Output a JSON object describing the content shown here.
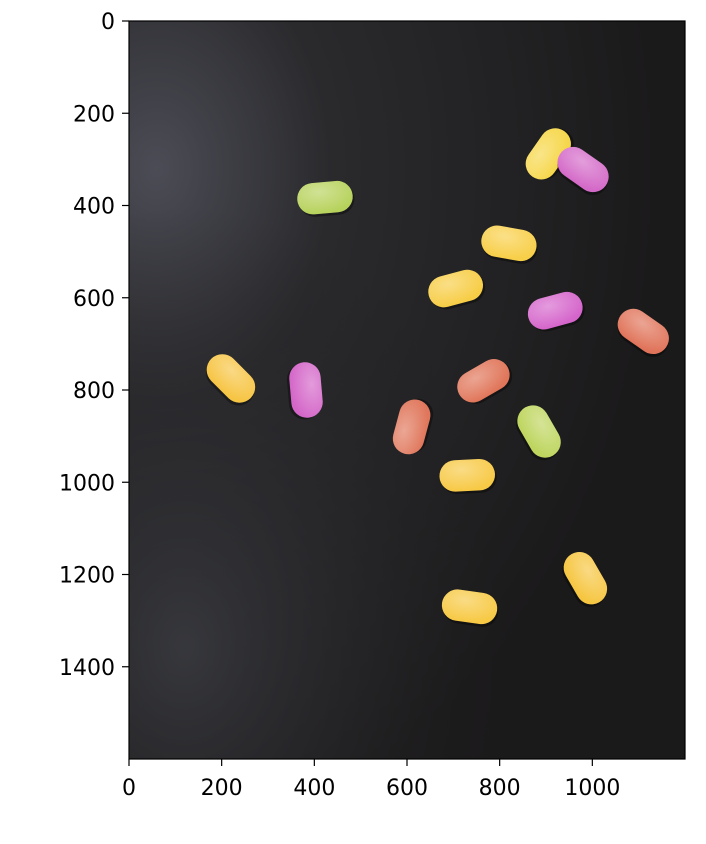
{
  "chart_data": {
    "type": "image",
    "title": "",
    "xlabel": "",
    "ylabel": "",
    "xlim": [
      0,
      1200
    ],
    "ylim": [
      1600,
      0
    ],
    "xticks": [
      0,
      200,
      400,
      600,
      800,
      1000
    ],
    "yticks": [
      0,
      200,
      400,
      600,
      800,
      1000,
      1200,
      1400
    ],
    "background_color": "#1f1e1f",
    "grid": false,
    "candies": [
      {
        "x": 905,
        "y": 288,
        "angle": -55,
        "color": "#f6d74a"
      },
      {
        "x": 980,
        "y": 322,
        "angle": 35,
        "color": "#d46ac8"
      },
      {
        "x": 423,
        "y": 383,
        "angle": -5,
        "color": "#b7d25c"
      },
      {
        "x": 820,
        "y": 482,
        "angle": 10,
        "color": "#f8cf48"
      },
      {
        "x": 705,
        "y": 580,
        "angle": -15,
        "color": "#f7cd45"
      },
      {
        "x": 920,
        "y": 628,
        "angle": -15,
        "color": "#d565cb"
      },
      {
        "x": 1110,
        "y": 673,
        "angle": 35,
        "color": "#e0745a"
      },
      {
        "x": 220,
        "y": 775,
        "angle": 45,
        "color": "#f7c544"
      },
      {
        "x": 382,
        "y": 800,
        "angle": 85,
        "color": "#d466c8"
      },
      {
        "x": 765,
        "y": 780,
        "angle": -30,
        "color": "#e07559"
      },
      {
        "x": 610,
        "y": 880,
        "angle": -75,
        "color": "#e0775c"
      },
      {
        "x": 885,
        "y": 890,
        "angle": 60,
        "color": "#bed55e"
      },
      {
        "x": 730,
        "y": 985,
        "angle": -3,
        "color": "#f7c945"
      },
      {
        "x": 985,
        "y": 1208,
        "angle": 60,
        "color": "#f6c641"
      },
      {
        "x": 735,
        "y": 1270,
        "angle": 8,
        "color": "#f7c944"
      }
    ]
  }
}
